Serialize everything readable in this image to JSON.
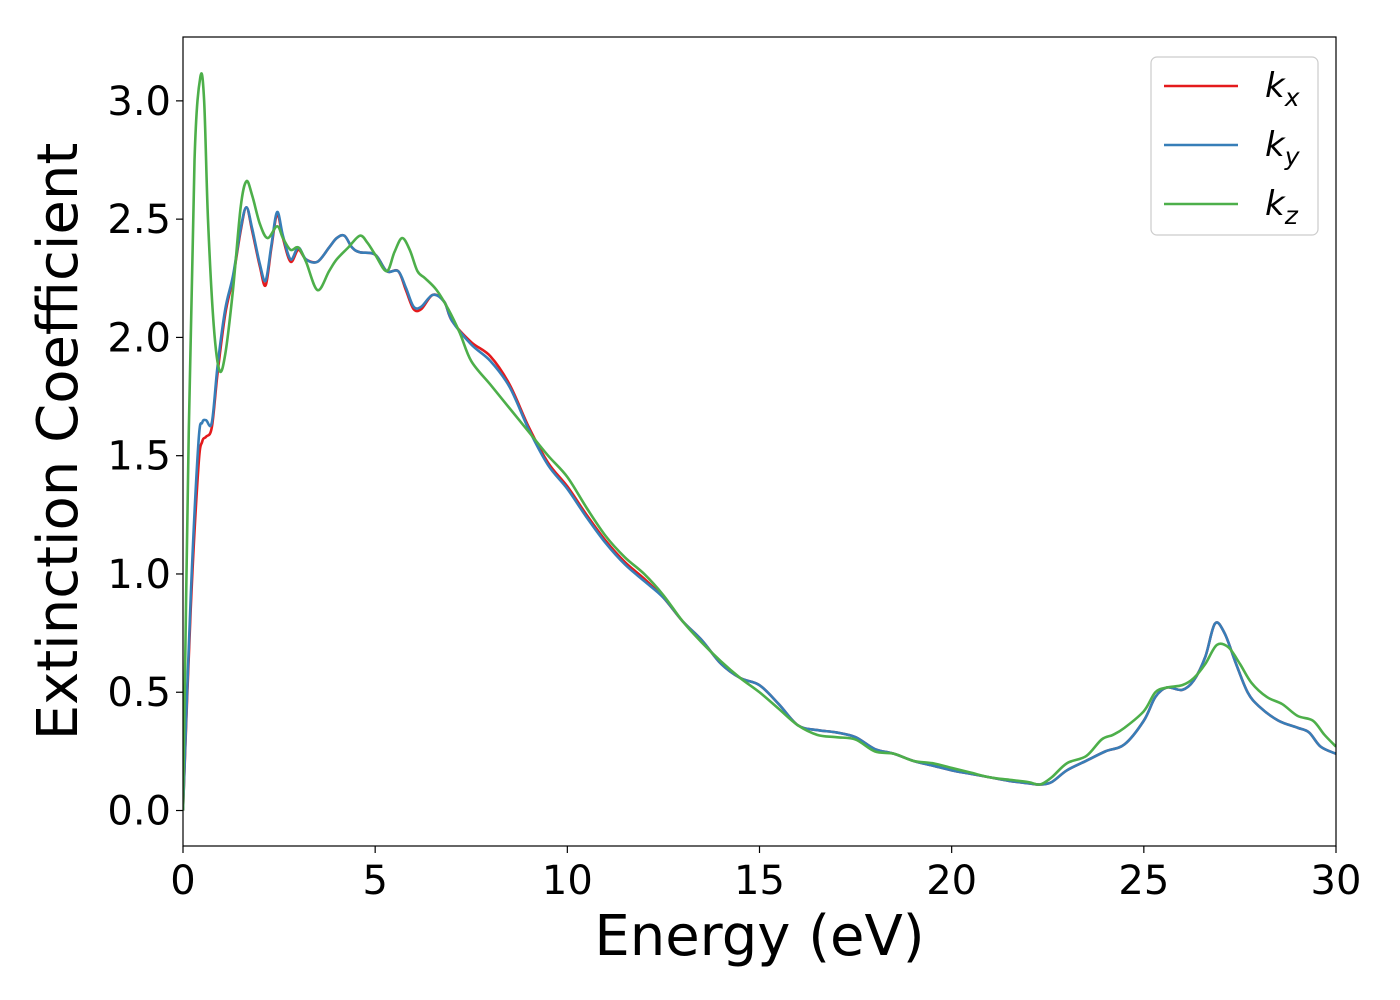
{
  "chart_data": {
    "type": "line",
    "title": "",
    "xlabel": "Energy (eV)",
    "ylabel": "Extinction Coefficient",
    "xlim": [
      0,
      30
    ],
    "ylim": [
      -0.15,
      3.27
    ],
    "xticks": [
      0,
      5,
      10,
      15,
      20,
      25,
      30
    ],
    "xtick_labels": [
      "0",
      "5",
      "10",
      "15",
      "20",
      "25",
      "30"
    ],
    "yticks": [
      0.0,
      0.5,
      1.0,
      1.5,
      2.0,
      2.5,
      3.0
    ],
    "ytick_labels": [
      "0.0",
      "0.5",
      "1.0",
      "1.5",
      "2.0",
      "2.5",
      "3.0"
    ],
    "grid": false,
    "legend_position": "top-right",
    "series": [
      {
        "name": "kx",
        "label_base": "k",
        "label_sub": "x",
        "color": "#e41a1c",
        "x": [
          0,
          0.2,
          0.4,
          0.5,
          0.6,
          0.75,
          0.9,
          1.1,
          1.3,
          1.5,
          1.65,
          1.8,
          2.0,
          2.15,
          2.3,
          2.45,
          2.6,
          2.8,
          3.0,
          3.2,
          3.5,
          3.8,
          4.0,
          4.2,
          4.4,
          4.6,
          5.0,
          5.3,
          5.6,
          5.8,
          6.0,
          6.2,
          6.5,
          6.8,
          7.0,
          7.5,
          8.0,
          8.5,
          9.0,
          9.5,
          10.0,
          10.5,
          11.0,
          11.5,
          12.0,
          12.5,
          13.0,
          13.5,
          14.0,
          14.5,
          15.0,
          15.5,
          16.0,
          16.5,
          17.0,
          17.5,
          18.0,
          18.5,
          19.0,
          19.5,
          20.0,
          20.5,
          21.0,
          21.5,
          22.0,
          22.3,
          22.6,
          23.0,
          23.5,
          24.0,
          24.5,
          25.0,
          25.3,
          25.6,
          26.0,
          26.3,
          26.6,
          26.85,
          27.1,
          27.4,
          27.7,
          28.0,
          28.5,
          29.0,
          29.3,
          29.6,
          30.0
        ],
        "y": [
          0.0,
          0.85,
          1.45,
          1.56,
          1.58,
          1.62,
          1.85,
          2.1,
          2.25,
          2.45,
          2.55,
          2.45,
          2.3,
          2.22,
          2.38,
          2.52,
          2.42,
          2.32,
          2.37,
          2.33,
          2.32,
          2.38,
          2.42,
          2.43,
          2.38,
          2.36,
          2.35,
          2.28,
          2.28,
          2.2,
          2.12,
          2.12,
          2.18,
          2.15,
          2.07,
          1.98,
          1.92,
          1.8,
          1.62,
          1.47,
          1.37,
          1.25,
          1.14,
          1.05,
          0.98,
          0.9,
          0.8,
          0.72,
          0.62,
          0.56,
          0.53,
          0.45,
          0.36,
          0.34,
          0.33,
          0.31,
          0.26,
          0.24,
          0.21,
          0.19,
          0.17,
          0.155,
          0.14,
          0.125,
          0.115,
          0.11,
          0.12,
          0.17,
          0.21,
          0.25,
          0.28,
          0.38,
          0.48,
          0.52,
          0.51,
          0.55,
          0.65,
          0.79,
          0.75,
          0.62,
          0.5,
          0.44,
          0.38,
          0.35,
          0.33,
          0.27,
          0.24
        ]
      },
      {
        "name": "ky",
        "label_base": "k",
        "label_sub": "y",
        "color": "#377eb8",
        "x": [
          0,
          0.2,
          0.4,
          0.5,
          0.6,
          0.75,
          0.9,
          1.1,
          1.3,
          1.5,
          1.65,
          1.8,
          2.0,
          2.15,
          2.3,
          2.45,
          2.6,
          2.8,
          3.0,
          3.2,
          3.5,
          3.8,
          4.0,
          4.2,
          4.4,
          4.6,
          5.0,
          5.3,
          5.6,
          5.8,
          6.0,
          6.2,
          6.5,
          6.8,
          7.0,
          7.5,
          8.0,
          8.5,
          9.0,
          9.5,
          10.0,
          10.5,
          11.0,
          11.5,
          12.0,
          12.5,
          13.0,
          13.5,
          14.0,
          14.5,
          15.0,
          15.5,
          16.0,
          16.5,
          17.0,
          17.5,
          18.0,
          18.5,
          19.0,
          19.5,
          20.0,
          20.5,
          21.0,
          21.5,
          22.0,
          22.3,
          22.6,
          23.0,
          23.5,
          24.0,
          24.5,
          25.0,
          25.3,
          25.6,
          26.0,
          26.3,
          26.6,
          26.85,
          27.1,
          27.4,
          27.7,
          28.0,
          28.5,
          29.0,
          29.3,
          29.6,
          30.0
        ],
        "y": [
          0.0,
          0.9,
          1.55,
          1.64,
          1.65,
          1.64,
          1.88,
          2.12,
          2.26,
          2.46,
          2.55,
          2.46,
          2.31,
          2.24,
          2.39,
          2.53,
          2.43,
          2.33,
          2.38,
          2.33,
          2.32,
          2.38,
          2.42,
          2.43,
          2.38,
          2.36,
          2.35,
          2.28,
          2.28,
          2.21,
          2.13,
          2.13,
          2.18,
          2.15,
          2.07,
          1.97,
          1.9,
          1.79,
          1.61,
          1.46,
          1.36,
          1.24,
          1.13,
          1.04,
          0.97,
          0.9,
          0.8,
          0.72,
          0.62,
          0.56,
          0.53,
          0.45,
          0.36,
          0.34,
          0.33,
          0.31,
          0.26,
          0.24,
          0.21,
          0.19,
          0.17,
          0.155,
          0.14,
          0.125,
          0.115,
          0.11,
          0.12,
          0.17,
          0.21,
          0.25,
          0.28,
          0.38,
          0.48,
          0.52,
          0.51,
          0.55,
          0.65,
          0.79,
          0.75,
          0.62,
          0.5,
          0.44,
          0.38,
          0.35,
          0.33,
          0.27,
          0.24
        ]
      },
      {
        "name": "kz",
        "label_base": "k",
        "label_sub": "z",
        "color": "#4daf4a",
        "x": [
          0,
          0.15,
          0.3,
          0.45,
          0.55,
          0.65,
          0.8,
          0.95,
          1.1,
          1.3,
          1.5,
          1.65,
          1.8,
          2.0,
          2.2,
          2.45,
          2.6,
          2.8,
          3.0,
          3.2,
          3.5,
          3.8,
          4.0,
          4.3,
          4.6,
          4.8,
          5.0,
          5.3,
          5.5,
          5.7,
          5.9,
          6.1,
          6.3,
          6.6,
          6.9,
          7.2,
          7.5,
          8.0,
          8.5,
          9.0,
          9.5,
          10.0,
          10.5,
          11.0,
          11.5,
          12.0,
          12.5,
          13.0,
          13.5,
          14.0,
          14.5,
          15.0,
          15.5,
          16.0,
          16.5,
          17.0,
          17.5,
          18.0,
          18.5,
          19.0,
          19.5,
          20.0,
          20.5,
          21.0,
          21.5,
          22.0,
          22.3,
          22.6,
          23.0,
          23.5,
          23.9,
          24.2,
          24.5,
          25.0,
          25.3,
          25.6,
          26.0,
          26.3,
          26.6,
          26.9,
          27.2,
          27.5,
          27.8,
          28.2,
          28.6,
          29.0,
          29.4,
          29.7,
          30.0
        ],
        "y": [
          0.0,
          1.6,
          2.75,
          3.1,
          3.0,
          2.5,
          2.05,
          1.86,
          1.93,
          2.2,
          2.55,
          2.66,
          2.6,
          2.48,
          2.42,
          2.47,
          2.42,
          2.37,
          2.38,
          2.32,
          2.2,
          2.28,
          2.33,
          2.38,
          2.43,
          2.4,
          2.35,
          2.28,
          2.36,
          2.42,
          2.37,
          2.28,
          2.25,
          2.2,
          2.12,
          2.02,
          1.9,
          1.8,
          1.7,
          1.6,
          1.5,
          1.41,
          1.28,
          1.16,
          1.07,
          1.0,
          0.91,
          0.8,
          0.71,
          0.63,
          0.56,
          0.5,
          0.43,
          0.36,
          0.32,
          0.31,
          0.3,
          0.25,
          0.24,
          0.21,
          0.2,
          0.18,
          0.16,
          0.14,
          0.13,
          0.12,
          0.11,
          0.14,
          0.2,
          0.23,
          0.3,
          0.32,
          0.35,
          0.42,
          0.5,
          0.52,
          0.53,
          0.56,
          0.62,
          0.7,
          0.69,
          0.62,
          0.54,
          0.48,
          0.45,
          0.4,
          0.38,
          0.32,
          0.27
        ]
      }
    ]
  }
}
